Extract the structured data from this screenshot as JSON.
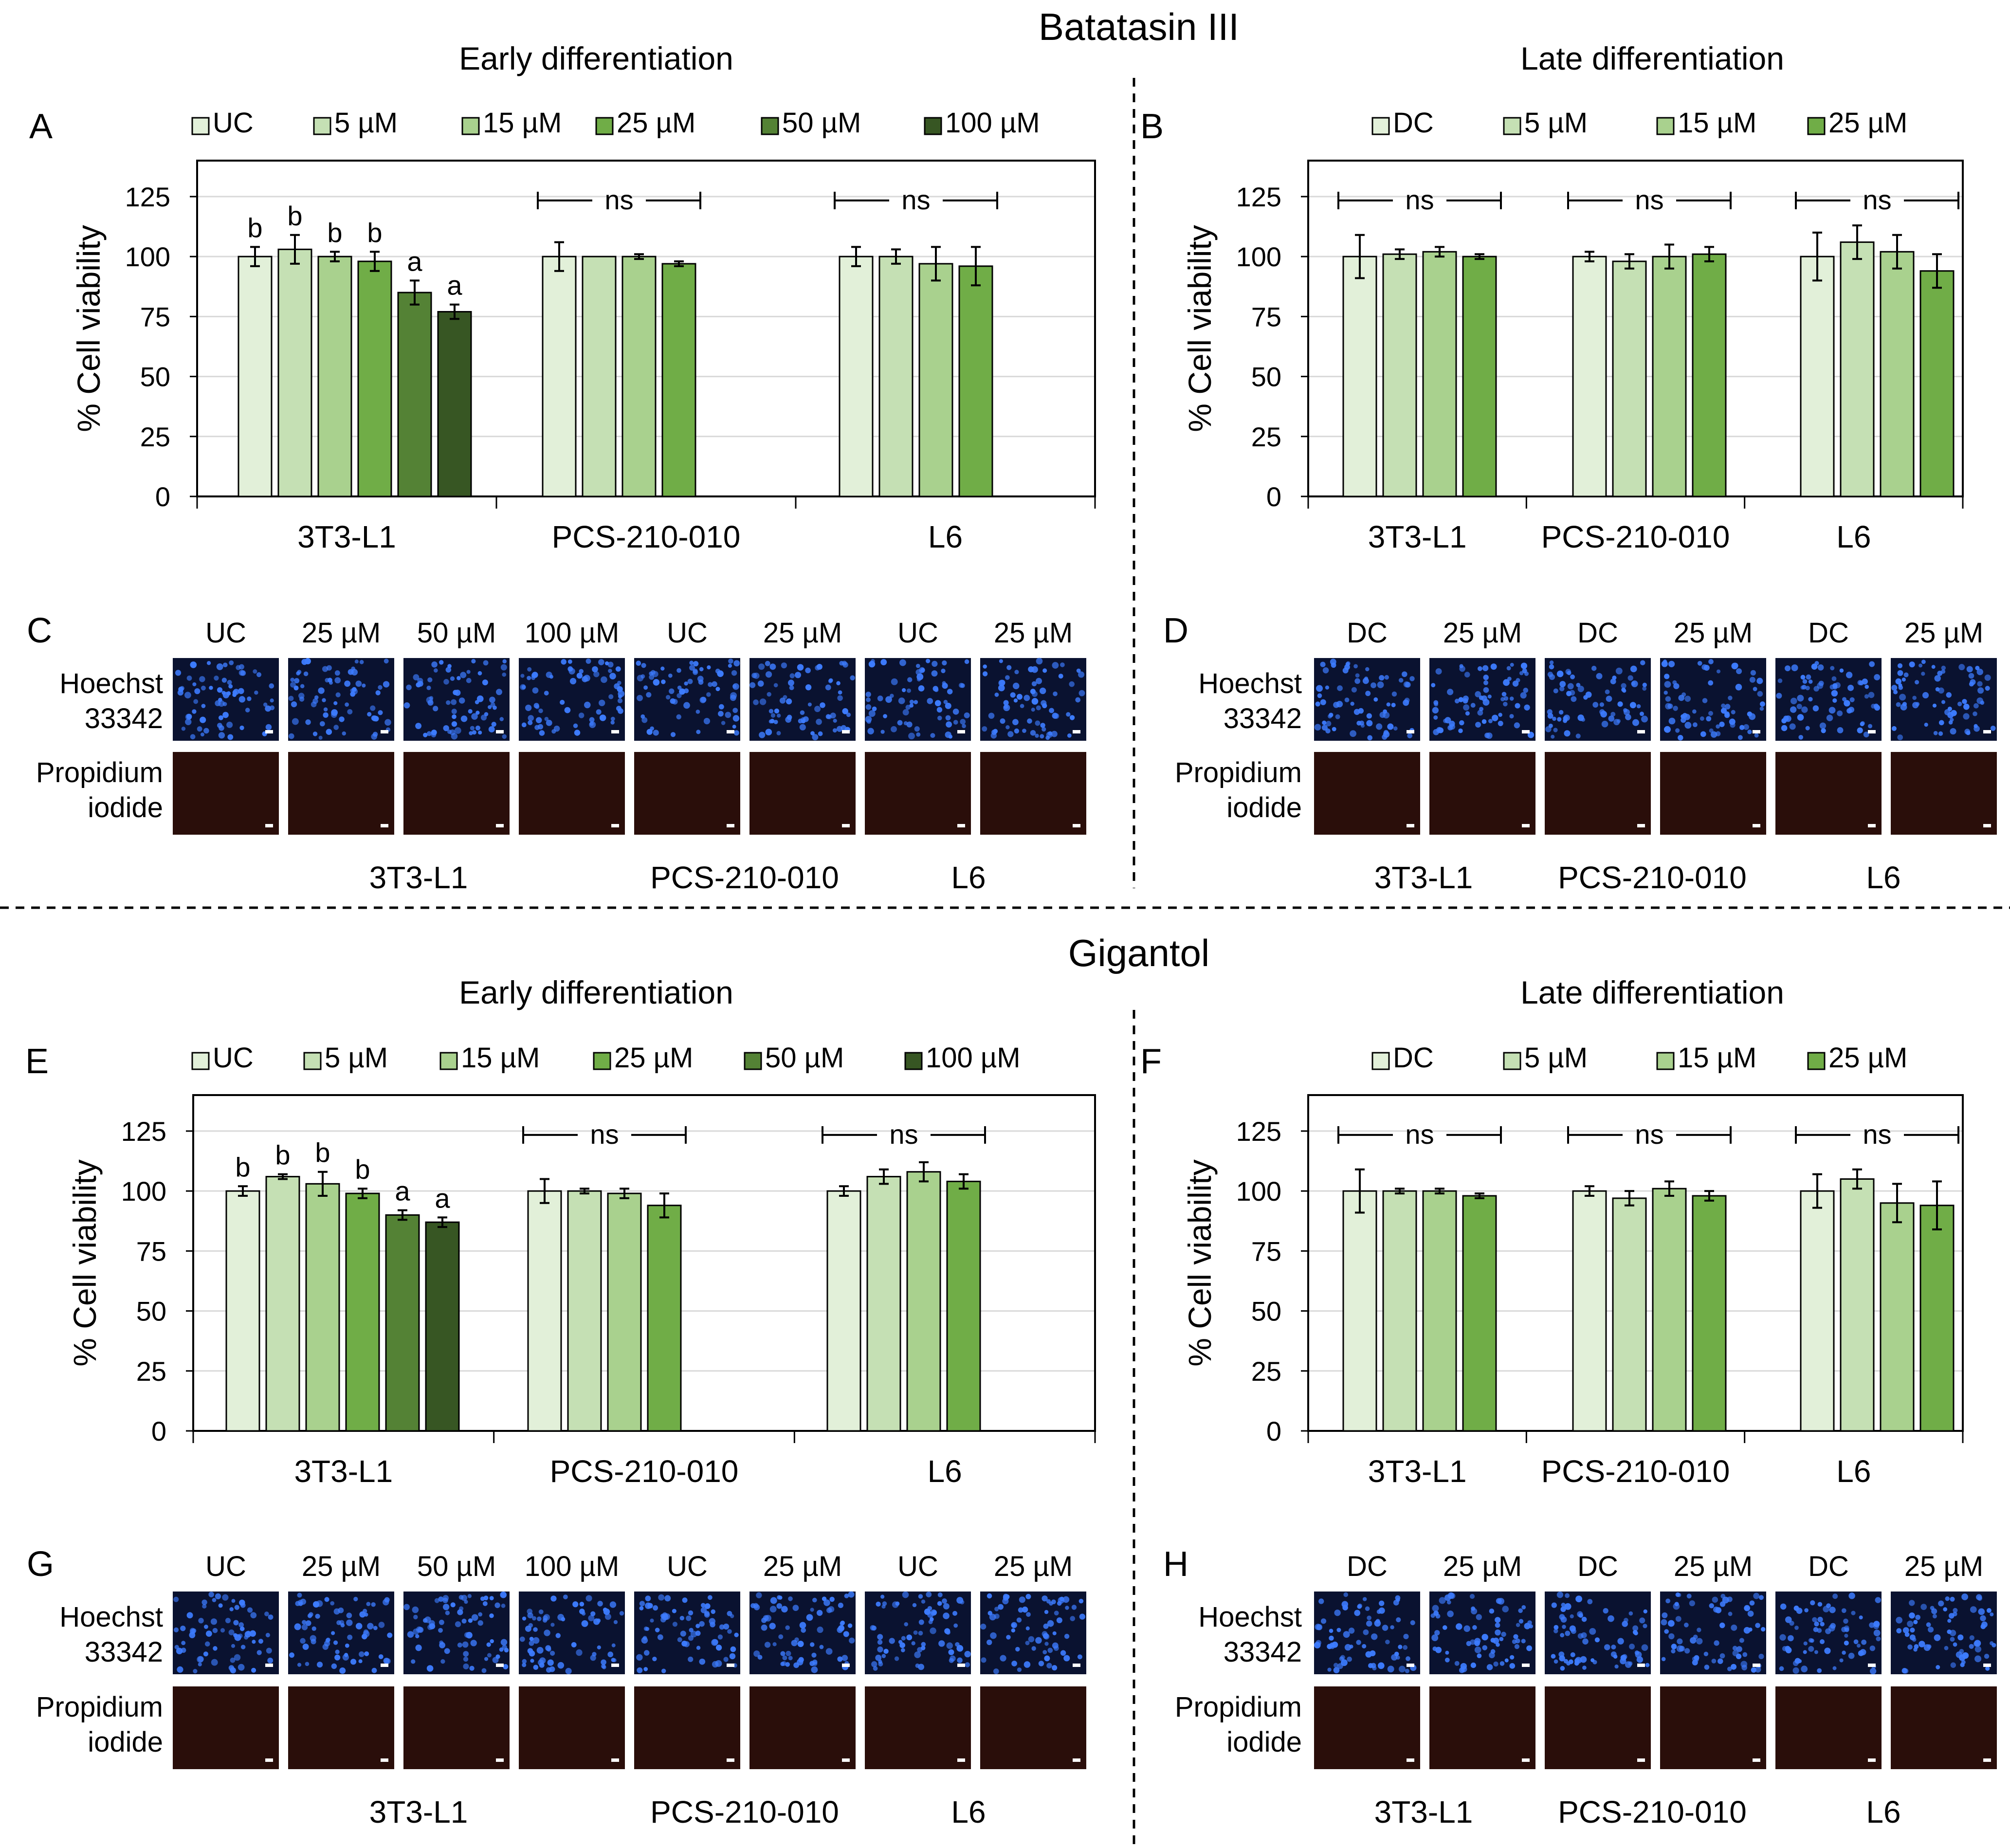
{
  "figure": {
    "top_title": "Batatasin III",
    "bottom_title": "Gigantol",
    "early_label": "Early differentiation",
    "late_label": "Late differentiation",
    "ylabel": "% Cell viability",
    "ns_label": "ns",
    "row_label_hoechst": [
      "Hoechst",
      "33342"
    ],
    "row_label_pi": [
      "Propidium",
      "iodide"
    ]
  },
  "colors": {
    "UC": "#e2f0d9",
    "DC": "#e2f0d9",
    "5": "#c5e0b4",
    "15": "#a9d18e",
    "25": "#70ad47",
    "50": "#548235",
    "100": "#375623",
    "hoechst_bg": "#0a1230",
    "hoechst_cell": "#3d7cff",
    "pi_bg": "#2a0e0a"
  },
  "chart_data": [
    {
      "id": "A",
      "type": "bar",
      "title": "Early differentiation",
      "ylabel": "% Cell viability",
      "ylim": [
        0,
        140
      ],
      "yticks": [
        0,
        25,
        50,
        75,
        100,
        125
      ],
      "legend": [
        "UC",
        "5 µM",
        "15 µM",
        "25 µM",
        "50 µM",
        "100 µM"
      ],
      "legend_colors": [
        "UC",
        "5",
        "15",
        "25",
        "50",
        "100"
      ],
      "groups": [
        {
          "name": "3T3-L1",
          "bars": [
            {
              "label": "UC",
              "value": 100,
              "err": 4,
              "color": "UC",
              "sig": "b"
            },
            {
              "label": "5 µM",
              "value": 103,
              "err": 6,
              "color": "5",
              "sig": "b"
            },
            {
              "label": "15 µM",
              "value": 100,
              "err": 2,
              "color": "15",
              "sig": "b"
            },
            {
              "label": "25 µM",
              "value": 98,
              "err": 4,
              "color": "25",
              "sig": "b"
            },
            {
              "label": "50 µM",
              "value": 85,
              "err": 5,
              "color": "50",
              "sig": "a"
            },
            {
              "label": "100 µM",
              "value": 77,
              "err": 3,
              "color": "100",
              "sig": "a"
            }
          ]
        },
        {
          "name": "PCS-210-010",
          "ns": "ns",
          "bars": [
            {
              "label": "UC",
              "value": 100,
              "err": 6,
              "color": "UC"
            },
            {
              "label": "5 µM",
              "value": 100,
              "err": 0,
              "color": "5"
            },
            {
              "label": "15 µM",
              "value": 100,
              "err": 1,
              "color": "15"
            },
            {
              "label": "25 µM",
              "value": 97,
              "err": 1,
              "color": "25"
            }
          ]
        },
        {
          "name": "L6",
          "ns": "ns",
          "bars": [
            {
              "label": "UC",
              "value": 100,
              "err": 4,
              "color": "UC"
            },
            {
              "label": "5 µM",
              "value": 100,
              "err": 3,
              "color": "5"
            },
            {
              "label": "15 µM",
              "value": 97,
              "err": 7,
              "color": "15"
            },
            {
              "label": "25 µM",
              "value": 96,
              "err": 8,
              "color": "25"
            }
          ]
        }
      ]
    },
    {
      "id": "B",
      "type": "bar",
      "title": "Late differentiation",
      "ylabel": "% Cell viability",
      "ylim": [
        0,
        140
      ],
      "yticks": [
        0,
        25,
        50,
        75,
        100,
        125
      ],
      "legend": [
        "DC",
        "5 µM",
        "15 µM",
        "25 µM"
      ],
      "legend_colors": [
        "DC",
        "5",
        "15",
        "25"
      ],
      "groups": [
        {
          "name": "3T3-L1",
          "ns": "ns",
          "bars": [
            {
              "label": "DC",
              "value": 100,
              "err": 9,
              "color": "DC"
            },
            {
              "label": "5 µM",
              "value": 101,
              "err": 2,
              "color": "5"
            },
            {
              "label": "15 µM",
              "value": 102,
              "err": 2,
              "color": "15"
            },
            {
              "label": "25 µM",
              "value": 100,
              "err": 1,
              "color": "25"
            }
          ]
        },
        {
          "name": "PCS-210-010",
          "ns": "ns",
          "bars": [
            {
              "label": "DC",
              "value": 100,
              "err": 2,
              "color": "DC"
            },
            {
              "label": "5 µM",
              "value": 98,
              "err": 3,
              "color": "5"
            },
            {
              "label": "15 µM",
              "value": 100,
              "err": 5,
              "color": "15"
            },
            {
              "label": "25 µM",
              "value": 101,
              "err": 3,
              "color": "25"
            }
          ]
        },
        {
          "name": "L6",
          "ns": "ns",
          "bars": [
            {
              "label": "DC",
              "value": 100,
              "err": 10,
              "color": "DC"
            },
            {
              "label": "5 µM",
              "value": 106,
              "err": 7,
              "color": "5"
            },
            {
              "label": "15 µM",
              "value": 102,
              "err": 7,
              "color": "15"
            },
            {
              "label": "25 µM",
              "value": 94,
              "err": 7,
              "color": "25"
            }
          ]
        }
      ]
    },
    {
      "id": "E",
      "type": "bar",
      "title": "Early differentiation",
      "ylabel": "% Cell viability",
      "ylim": [
        0,
        140
      ],
      "yticks": [
        0,
        25,
        50,
        75,
        100,
        125
      ],
      "legend": [
        "UC",
        "5 µM",
        "15 µM",
        "25 µM",
        "50 µM",
        "100 µM"
      ],
      "legend_colors": [
        "UC",
        "5",
        "15",
        "25",
        "50",
        "100"
      ],
      "groups": [
        {
          "name": "3T3-L1",
          "bars": [
            {
              "label": "UC",
              "value": 100,
              "err": 2,
              "color": "UC",
              "sig": "b"
            },
            {
              "label": "5 µM",
              "value": 106,
              "err": 1,
              "color": "5",
              "sig": "b"
            },
            {
              "label": "15 µM",
              "value": 103,
              "err": 5,
              "color": "15",
              "sig": "b"
            },
            {
              "label": "25 µM",
              "value": 99,
              "err": 2,
              "color": "25",
              "sig": "b"
            },
            {
              "label": "50 µM",
              "value": 90,
              "err": 2,
              "color": "50",
              "sig": "a"
            },
            {
              "label": "100 µM",
              "value": 87,
              "err": 2,
              "color": "100",
              "sig": "a"
            }
          ]
        },
        {
          "name": "PCS-210-010",
          "ns": "ns",
          "bars": [
            {
              "label": "UC",
              "value": 100,
              "err": 5,
              "color": "UC"
            },
            {
              "label": "5 µM",
              "value": 100,
              "err": 1,
              "color": "5"
            },
            {
              "label": "15 µM",
              "value": 99,
              "err": 2,
              "color": "15"
            },
            {
              "label": "25 µM",
              "value": 94,
              "err": 5,
              "color": "25"
            }
          ]
        },
        {
          "name": "L6",
          "ns": "ns",
          "bars": [
            {
              "label": "UC",
              "value": 100,
              "err": 2,
              "color": "UC"
            },
            {
              "label": "5 µM",
              "value": 106,
              "err": 3,
              "color": "5"
            },
            {
              "label": "15 µM",
              "value": 108,
              "err": 4,
              "color": "15"
            },
            {
              "label": "25 µM",
              "value": 104,
              "err": 3,
              "color": "25"
            }
          ]
        }
      ]
    },
    {
      "id": "F",
      "type": "bar",
      "title": "Late differentiation",
      "ylabel": "% Cell viability",
      "ylim": [
        0,
        140
      ],
      "yticks": [
        0,
        25,
        50,
        75,
        100,
        125
      ],
      "legend": [
        "DC",
        "5 µM",
        "15 µM",
        "25 µM"
      ],
      "legend_colors": [
        "DC",
        "5",
        "15",
        "25"
      ],
      "groups": [
        {
          "name": "3T3-L1",
          "ns": "ns",
          "bars": [
            {
              "label": "DC",
              "value": 100,
              "err": 9,
              "color": "DC"
            },
            {
              "label": "5 µM",
              "value": 100,
              "err": 1,
              "color": "5"
            },
            {
              "label": "15 µM",
              "value": 100,
              "err": 1,
              "color": "15"
            },
            {
              "label": "25 µM",
              "value": 98,
              "err": 1,
              "color": "25"
            }
          ]
        },
        {
          "name": "PCS-210-010",
          "ns": "ns",
          "bars": [
            {
              "label": "DC",
              "value": 100,
              "err": 2,
              "color": "DC"
            },
            {
              "label": "5 µM",
              "value": 97,
              "err": 3,
              "color": "5"
            },
            {
              "label": "15 µM",
              "value": 101,
              "err": 3,
              "color": "15"
            },
            {
              "label": "25 µM",
              "value": 98,
              "err": 2,
              "color": "25"
            }
          ]
        },
        {
          "name": "L6",
          "ns": "ns",
          "bars": [
            {
              "label": "DC",
              "value": 100,
              "err": 7,
              "color": "DC"
            },
            {
              "label": "5 µM",
              "value": 105,
              "err": 4,
              "color": "5"
            },
            {
              "label": "15 µM",
              "value": 95,
              "err": 8,
              "color": "15"
            },
            {
              "label": "25 µM",
              "value": 94,
              "err": 10,
              "color": "25"
            }
          ]
        }
      ]
    }
  ],
  "image_panels": [
    {
      "id": "C",
      "cols": [
        "UC",
        "25 µM",
        "50 µM",
        "100 µM",
        "UC",
        "25 µM",
        "UC",
        "25 µM"
      ],
      "cells": [
        "3T3-L1",
        "PCS-210-010",
        "L6"
      ]
    },
    {
      "id": "D",
      "cols": [
        "DC",
        "25 µM",
        "DC",
        "25 µM",
        "DC",
        "25 µM"
      ],
      "cells": [
        "3T3-L1",
        "PCS-210-010",
        "L6"
      ]
    },
    {
      "id": "G",
      "cols": [
        "UC",
        "25 µM",
        "50 µM",
        "100 µM",
        "UC",
        "25 µM",
        "UC",
        "25 µM"
      ],
      "cells": [
        "3T3-L1",
        "PCS-210-010",
        "L6"
      ]
    },
    {
      "id": "H",
      "cols": [
        "DC",
        "25 µM",
        "DC",
        "25 µM",
        "DC",
        "25 µM"
      ],
      "cells": [
        "3T3-L1",
        "PCS-210-010",
        "L6"
      ]
    }
  ]
}
